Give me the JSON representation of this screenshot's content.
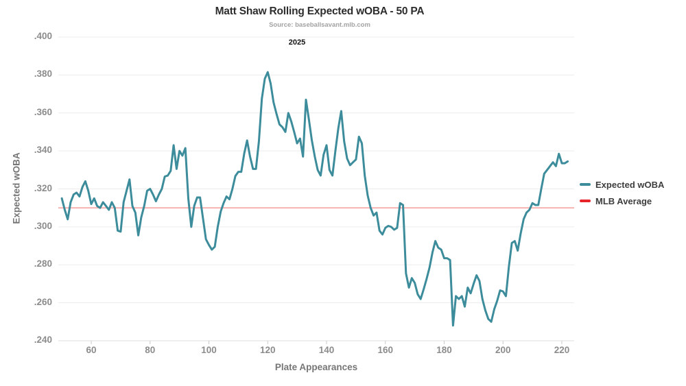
{
  "chart_data": {
    "type": "line",
    "title": "Matt Shaw Rolling Expected wOBA - 50 PA",
    "subtitle": "Source: baseballsavant.mlb.com",
    "facet_label": "2025",
    "xlabel": "Plate Appearances",
    "ylabel": "Expected wOBA",
    "xlim": [
      48.8,
      224.2
    ],
    "ylim": [
      0.24,
      0.4
    ],
    "x_ticks": [
      60,
      80,
      100,
      120,
      140,
      160,
      180,
      200,
      220
    ],
    "y_ticks": [
      {
        "value": 0.4,
        "label": ".400"
      },
      {
        "value": 0.38,
        "label": ".380"
      },
      {
        "value": 0.36,
        "label": ".360"
      },
      {
        "value": 0.34,
        "label": ".340"
      },
      {
        "value": 0.32,
        "label": ".320"
      },
      {
        "value": 0.3,
        "label": ".300"
      },
      {
        "value": 0.28,
        "label": ".280"
      },
      {
        "value": 0.26,
        "label": ".260"
      },
      {
        "value": 0.24,
        "label": ".240"
      }
    ],
    "grid": "horizontal",
    "legend_position": "right",
    "series": [
      {
        "name": "Expected wOBA",
        "kind": "line",
        "color": "#3c8c9b",
        "x_start": 50,
        "x_step": 1,
        "values": [
          0.315,
          0.309,
          0.304,
          0.313,
          0.317,
          0.318,
          0.316,
          0.321,
          0.324,
          0.319,
          0.312,
          0.315,
          0.311,
          0.31,
          0.313,
          0.311,
          0.309,
          0.313,
          0.31,
          0.298,
          0.2975,
          0.313,
          0.319,
          0.325,
          0.311,
          0.3075,
          0.2955,
          0.305,
          0.311,
          0.319,
          0.32,
          0.317,
          0.3135,
          0.317,
          0.32,
          0.3265,
          0.327,
          0.3295,
          0.343,
          0.3305,
          0.34,
          0.3375,
          0.3415,
          0.315,
          0.3,
          0.311,
          0.3155,
          0.3155,
          0.3045,
          0.2935,
          0.2905,
          0.288,
          0.2895,
          0.3,
          0.308,
          0.3125,
          0.316,
          0.3145,
          0.32,
          0.3268,
          0.329,
          0.329,
          0.3386,
          0.3455,
          0.337,
          0.3305,
          0.3305,
          0.345,
          0.3675,
          0.378,
          0.3815,
          0.3755,
          0.3655,
          0.3595,
          0.354,
          0.3525,
          0.35,
          0.36,
          0.3555,
          0.35,
          0.344,
          0.3465,
          0.337,
          0.367,
          0.3565,
          0.3455,
          0.337,
          0.33,
          0.327,
          0.338,
          0.343,
          0.33,
          0.327,
          0.34,
          0.352,
          0.361,
          0.345,
          0.336,
          0.3325,
          0.334,
          0.3355,
          0.3475,
          0.344,
          0.327,
          0.3165,
          0.31,
          0.306,
          0.3075,
          0.298,
          0.296,
          0.2995,
          0.3005,
          0.3,
          0.2985,
          0.2995,
          0.3125,
          0.3115,
          0.2755,
          0.268,
          0.273,
          0.2705,
          0.2645,
          0.262,
          0.267,
          0.2725,
          0.2785,
          0.2865,
          0.2925,
          0.289,
          0.288,
          0.2835,
          0.2835,
          0.2825,
          0.248,
          0.2635,
          0.262,
          0.2635,
          0.258,
          0.268,
          0.265,
          0.27,
          0.2745,
          0.2715,
          0.262,
          0.256,
          0.2515,
          0.25,
          0.2565,
          0.261,
          0.2665,
          0.266,
          0.2635,
          0.279,
          0.2915,
          0.2925,
          0.2875,
          0.2965,
          0.304,
          0.3075,
          0.309,
          0.3125,
          0.3115,
          0.3115,
          0.32,
          0.328,
          0.33,
          0.332,
          0.334,
          0.332,
          0.3385,
          0.3335,
          0.3335,
          0.3345
        ]
      },
      {
        "name": "MLB Average",
        "kind": "hline",
        "color": "#f59292",
        "legend_color": "#e8242b",
        "value": 0.31
      }
    ]
  },
  "style": {
    "gridline_color": "#ececec",
    "axis_line_color": "#dcdcdc",
    "tick_mark_color": "#c9c9c9"
  }
}
